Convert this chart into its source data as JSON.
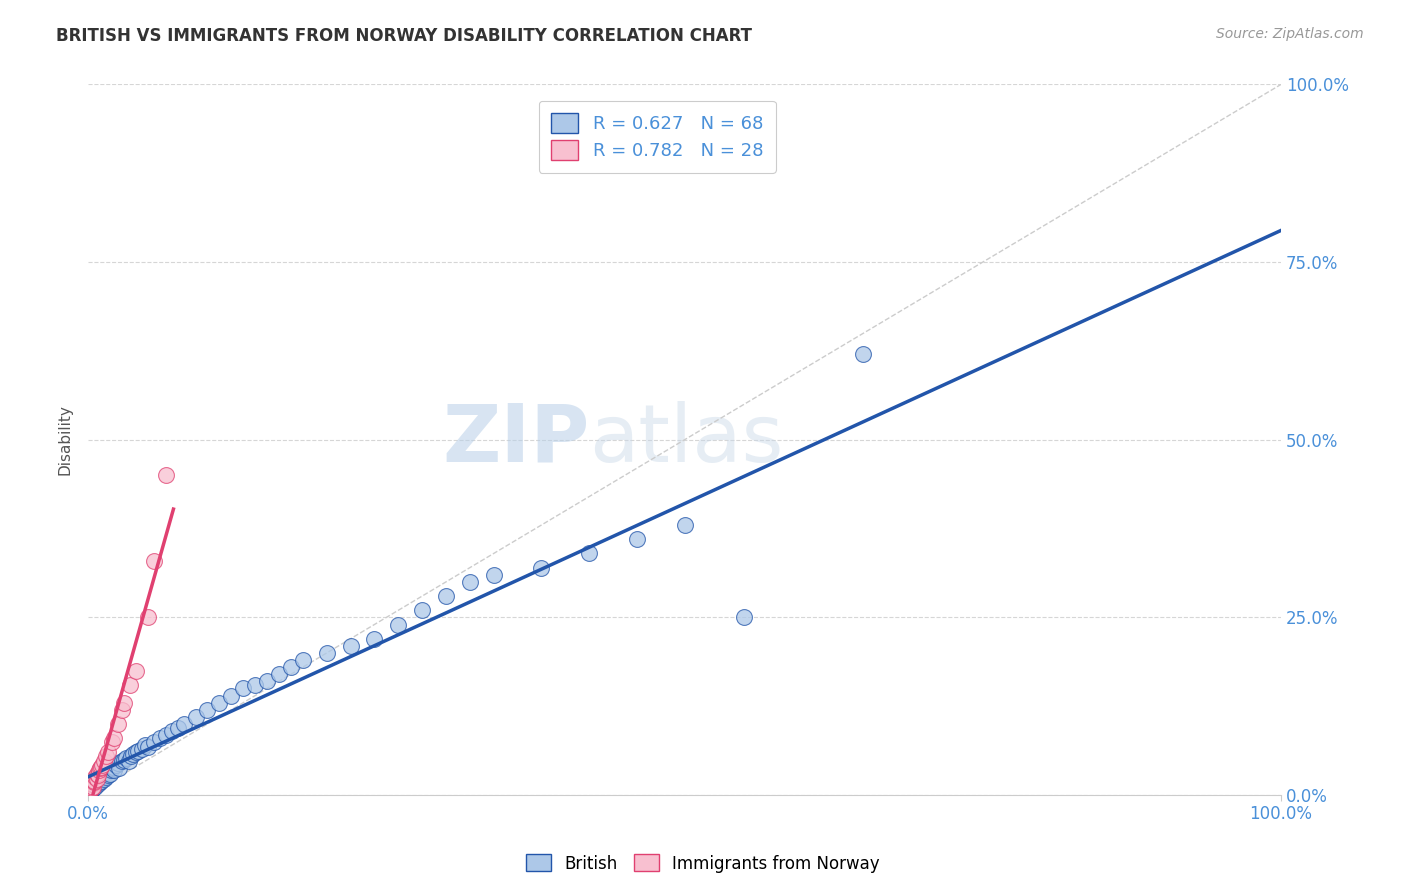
{
  "title": "BRITISH VS IMMIGRANTS FROM NORWAY DISABILITY CORRELATION CHART",
  "source": "Source: ZipAtlas.com",
  "ylabel": "Disability",
  "british_R": 0.627,
  "british_N": 68,
  "norway_R": 0.782,
  "norway_N": 28,
  "british_color": "#adc8e8",
  "british_line_color": "#2255aa",
  "norway_color": "#f8c0d0",
  "norway_line_color": "#e04070",
  "watermark_text": "ZIPatlas",
  "title_color": "#333333",
  "tick_color": "#4a90d9",
  "grid_color": "#cccccc",
  "xlim": [
    0,
    1.0
  ],
  "ylim": [
    0,
    1.0
  ],
  "xtick_positions": [
    0.0,
    1.0
  ],
  "xtick_labels": [
    "0.0%",
    "100.0%"
  ],
  "ytick_positions": [
    0.0,
    0.25,
    0.5,
    0.75,
    1.0
  ],
  "ytick_labels": [
    "0.0%",
    "25.0%",
    "50.0%",
    "75.0%",
    "100.0%"
  ],
  "british_x": [
    0.002,
    0.003,
    0.004,
    0.005,
    0.005,
    0.006,
    0.007,
    0.007,
    0.008,
    0.009,
    0.01,
    0.01,
    0.011,
    0.012,
    0.013,
    0.014,
    0.015,
    0.016,
    0.017,
    0.018,
    0.019,
    0.02,
    0.021,
    0.022,
    0.023,
    0.025,
    0.026,
    0.028,
    0.03,
    0.032,
    0.034,
    0.036,
    0.038,
    0.04,
    0.042,
    0.045,
    0.048,
    0.05,
    0.055,
    0.06,
    0.065,
    0.07,
    0.075,
    0.08,
    0.09,
    0.1,
    0.11,
    0.12,
    0.13,
    0.14,
    0.15,
    0.16,
    0.17,
    0.18,
    0.2,
    0.22,
    0.24,
    0.26,
    0.28,
    0.3,
    0.32,
    0.34,
    0.38,
    0.42,
    0.46,
    0.5,
    0.55,
    0.65
  ],
  "british_y": [
    0.005,
    0.008,
    0.01,
    0.012,
    0.015,
    0.012,
    0.018,
    0.02,
    0.015,
    0.022,
    0.018,
    0.025,
    0.02,
    0.028,
    0.022,
    0.03,
    0.025,
    0.032,
    0.028,
    0.03,
    0.035,
    0.038,
    0.04,
    0.035,
    0.042,
    0.045,
    0.038,
    0.048,
    0.05,
    0.052,
    0.048,
    0.055,
    0.058,
    0.06,
    0.062,
    0.065,
    0.07,
    0.068,
    0.075,
    0.08,
    0.085,
    0.09,
    0.095,
    0.1,
    0.11,
    0.12,
    0.13,
    0.14,
    0.15,
    0.155,
    0.16,
    0.17,
    0.18,
    0.19,
    0.2,
    0.21,
    0.22,
    0.24,
    0.26,
    0.28,
    0.3,
    0.31,
    0.32,
    0.34,
    0.36,
    0.38,
    0.25,
    0.62
  ],
  "norway_x": [
    0.001,
    0.002,
    0.003,
    0.003,
    0.004,
    0.005,
    0.005,
    0.006,
    0.007,
    0.007,
    0.008,
    0.009,
    0.01,
    0.011,
    0.012,
    0.013,
    0.015,
    0.017,
    0.02,
    0.022,
    0.025,
    0.028,
    0.03,
    0.035,
    0.04,
    0.05,
    0.055,
    0.065
  ],
  "norway_y": [
    0.005,
    0.008,
    0.01,
    0.015,
    0.012,
    0.018,
    0.02,
    0.025,
    0.022,
    0.03,
    0.028,
    0.035,
    0.038,
    0.04,
    0.042,
    0.048,
    0.055,
    0.06,
    0.075,
    0.08,
    0.1,
    0.12,
    0.13,
    0.155,
    0.175,
    0.25,
    0.33,
    0.45
  ]
}
